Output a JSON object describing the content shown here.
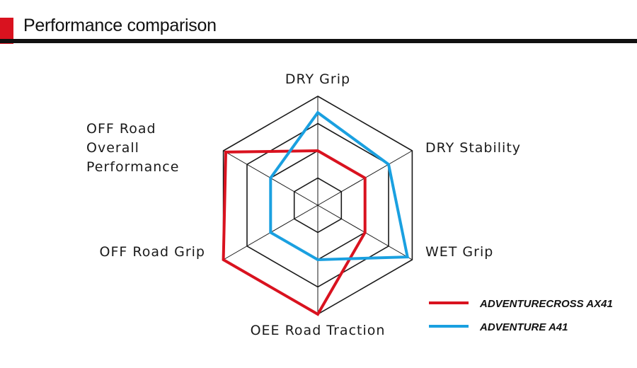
{
  "header": {
    "title": "Performance comparison"
  },
  "colors": {
    "accent": "#d9121f",
    "series_red": "#d9121f",
    "series_blue": "#1aa0e0",
    "grid": "#1a1a1a"
  },
  "chart_data": {
    "type": "radar",
    "title": "Performance comparison",
    "axes": [
      "DRY Grip",
      "DRY Stability",
      "WET Grip",
      "OEE Road Traction",
      "OFF Road Grip",
      "OFF Road Overall Performance"
    ],
    "axis_label_lines": [
      [
        "DRY Grip"
      ],
      [
        "DRY Stability"
      ],
      [
        "WET Grip"
      ],
      [
        "OEE Road Traction"
      ],
      [
        "OFF Road Grip"
      ],
      [
        "OFF Road",
        "Overall",
        "Performance"
      ]
    ],
    "rings": 4,
    "range": [
      0,
      4
    ],
    "grid": true,
    "legend_position": "bottom-right",
    "series": [
      {
        "name": "ADVENTURECROSS AX41",
        "color": "#d9121f",
        "values": [
          2.0,
          2.0,
          2.0,
          4.0,
          4.0,
          3.9
        ]
      },
      {
        "name": "ADVENTURE A41",
        "color": "#1aa0e0",
        "values": [
          3.4,
          3.0,
          3.8,
          2.0,
          2.0,
          2.0
        ]
      }
    ]
  }
}
